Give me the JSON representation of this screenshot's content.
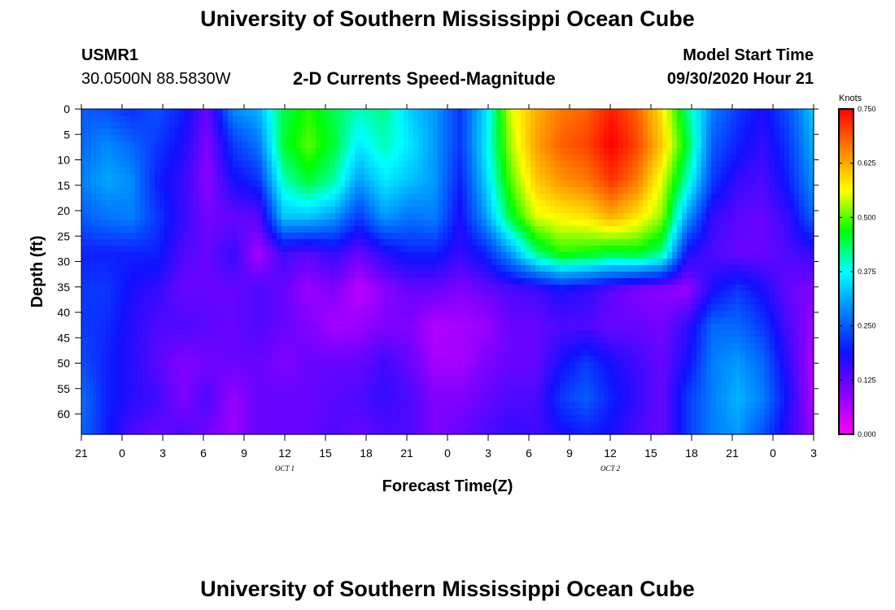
{
  "header": {
    "title": "University of Southern Mississippi Ocean Cube",
    "station": "USMR1",
    "coords": "30.0500N 88.5830W",
    "subtitle": "2-D Currents Speed-Magnitude",
    "model_label": "Model Start Time",
    "model_time": "09/30/2020 Hour 21"
  },
  "footer": {
    "title": "University of Southern Mississippi Ocean Cube"
  },
  "colors": {
    "colormap": [
      "#ff00ff",
      "#8800ff",
      "#1010ff",
      "#0080ff",
      "#00ffff",
      "#00ff00",
      "#ffff00",
      "#ff8000",
      "#ff0000"
    ]
  },
  "chart_data": {
    "type": "heatmap",
    "title": "2-D Currents Speed-Magnitude",
    "xlabel": "Forecast Time(Z)",
    "ylabel": "Depth (ft)",
    "x_tick_labels": [
      "21",
      "0",
      "3",
      "6",
      "9",
      "12",
      "15",
      "18",
      "21",
      "0",
      "3",
      "6",
      "9",
      "12",
      "15",
      "18",
      "21",
      "0",
      "3"
    ],
    "x_day_labels": [
      {
        "label": "OCT 1",
        "under_tick": 5
      },
      {
        "label": "OCT 2",
        "under_tick": 13
      }
    ],
    "y_tick_labels": [
      "0",
      "5",
      "10",
      "15",
      "20",
      "25",
      "30",
      "35",
      "40",
      "45",
      "50",
      "55",
      "60"
    ],
    "ylim": [
      0,
      64
    ],
    "y_inverted": true,
    "colorbar": {
      "unit": "Knots",
      "range": [
        0,
        0.75
      ],
      "tick_labels": [
        "0.750",
        "0.625",
        "0.500",
        "0.375",
        "0.250",
        "0.125",
        "0.000"
      ]
    },
    "x_hours": [
      0,
      3,
      6,
      9,
      12,
      15,
      18,
      21,
      24,
      27,
      30,
      33,
      36,
      39,
      42,
      45,
      48,
      51,
      54
    ],
    "depths": [
      0,
      5,
      10,
      15,
      20,
      25,
      30,
      35,
      40,
      45,
      50,
      55,
      60,
      64
    ],
    "speed_knots": [
      [
        0.25,
        0.26,
        0.28,
        0.25,
        0.2,
        0.22,
        0.22,
        0.24,
        0.27,
        0.26
      ],
      [
        0.24,
        0.29,
        0.31,
        0.27,
        0.2,
        0.22,
        0.21,
        0.2,
        0.2,
        0.2
      ],
      [
        0.21,
        0.26,
        0.29,
        0.28,
        0.2,
        0.18,
        0.17,
        0.17,
        0.17,
        0.14
      ],
      [
        0.24,
        0.22,
        0.2,
        0.22,
        0.2,
        0.16,
        0.14,
        0.13,
        0.15,
        0.12
      ],
      [
        0.2,
        0.18,
        0.16,
        0.16,
        0.14,
        0.12,
        0.14,
        0.1,
        0.1,
        0.14
      ],
      [
        0.12,
        0.1,
        0.09,
        0.11,
        0.12,
        0.12,
        0.13,
        0.11,
        0.14,
        0.11
      ],
      [
        0.29,
        0.22,
        0.18,
        0.12,
        0.16,
        0.12,
        0.12,
        0.12,
        0.08,
        0.08
      ],
      [
        0.32,
        0.27,
        0.21,
        0.13,
        0.07,
        0.14,
        0.14,
        0.12,
        0.12,
        0.12
      ],
      [
        0.44,
        0.45,
        0.4,
        0.33,
        0.15,
        0.12,
        0.12,
        0.1,
        0.12,
        0.12
      ],
      [
        0.48,
        0.5,
        0.45,
        0.33,
        0.13,
        0.08,
        0.1,
        0.12,
        0.12,
        0.12
      ],
      [
        0.44,
        0.45,
        0.41,
        0.3,
        0.16,
        0.1,
        0.07,
        0.12,
        0.13,
        0.14
      ],
      [
        0.4,
        0.36,
        0.3,
        0.22,
        0.12,
        0.05,
        0.08,
        0.12,
        0.14,
        0.12
      ],
      [
        0.42,
        0.4,
        0.36,
        0.3,
        0.17,
        0.09,
        0.1,
        0.15,
        0.16,
        0.14
      ],
      [
        0.34,
        0.36,
        0.33,
        0.27,
        0.2,
        0.12,
        0.1,
        0.12,
        0.14,
        0.14
      ],
      [
        0.3,
        0.3,
        0.3,
        0.28,
        0.2,
        0.12,
        0.06,
        0.07,
        0.1,
        0.1
      ],
      [
        0.22,
        0.22,
        0.2,
        0.18,
        0.16,
        0.1,
        0.07,
        0.07,
        0.1,
        0.12
      ],
      [
        0.35,
        0.36,
        0.34,
        0.3,
        0.2,
        0.12,
        0.08,
        0.1,
        0.12,
        0.14
      ],
      [
        0.55,
        0.53,
        0.5,
        0.45,
        0.3,
        0.14,
        0.12,
        0.12,
        0.14,
        0.16
      ],
      [
        0.62,
        0.63,
        0.6,
        0.55,
        0.42,
        0.15,
        0.12,
        0.12,
        0.14,
        0.15
      ],
      [
        0.66,
        0.68,
        0.64,
        0.57,
        0.48,
        0.18,
        0.14,
        0.18,
        0.22,
        0.18
      ],
      [
        0.68,
        0.7,
        0.66,
        0.58,
        0.47,
        0.16,
        0.14,
        0.22,
        0.25,
        0.2
      ],
      [
        0.73,
        0.75,
        0.71,
        0.62,
        0.45,
        0.13,
        0.12,
        0.18,
        0.2,
        0.18
      ],
      [
        0.68,
        0.7,
        0.66,
        0.58,
        0.46,
        0.1,
        0.12,
        0.15,
        0.16,
        0.14
      ],
      [
        0.58,
        0.6,
        0.55,
        0.52,
        0.42,
        0.09,
        0.11,
        0.12,
        0.12,
        0.12
      ],
      [
        0.42,
        0.45,
        0.4,
        0.3,
        0.18,
        0.08,
        0.16,
        0.18,
        0.22,
        0.22
      ],
      [
        0.28,
        0.25,
        0.22,
        0.16,
        0.14,
        0.18,
        0.26,
        0.28,
        0.28,
        0.28
      ],
      [
        0.22,
        0.2,
        0.16,
        0.13,
        0.12,
        0.22,
        0.26,
        0.3,
        0.32,
        0.3
      ],
      [
        0.18,
        0.16,
        0.14,
        0.12,
        0.12,
        0.18,
        0.22,
        0.26,
        0.28,
        0.24
      ],
      [
        0.24,
        0.22,
        0.2,
        0.16,
        0.14,
        0.12,
        0.14,
        0.16,
        0.18,
        0.16
      ],
      [
        0.34,
        0.32,
        0.3,
        0.26,
        0.16,
        0.1,
        0.08,
        0.06,
        0.06,
        0.08
      ]
    ]
  }
}
